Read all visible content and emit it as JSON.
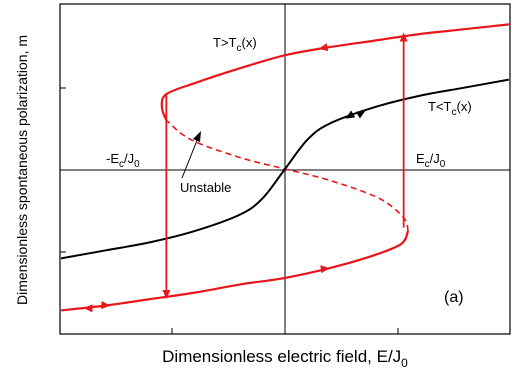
{
  "chart_data": {
    "type": "line",
    "panel_label": "(a)",
    "xlabel_main": "Dimensionless electric field, E/J",
    "xlabel_sub": "0",
    "ylabel": "Dimensionless spontaneous polarization, m",
    "grid": false,
    "axes_crosshair_at_origin": true,
    "series": [
      {
        "name": "T>Tc(x)",
        "color": "#e8171b",
        "style": "solid",
        "points": [
          [
            -1.0,
            -0.87
          ],
          [
            -0.8,
            -0.84
          ],
          [
            -0.6,
            -0.8
          ],
          [
            -0.4,
            -0.76
          ],
          [
            -0.2,
            -0.71
          ],
          [
            0,
            -0.67
          ],
          [
            0.2,
            -0.61
          ],
          [
            0.4,
            -0.53
          ],
          [
            0.52,
            -0.46
          ],
          [
            0.55,
            -0.38
          ],
          [
            0.53,
            -0.3
          ],
          [
            0.42,
            -0.18
          ],
          [
            0.2,
            -0.07
          ],
          [
            0,
            0
          ],
          [
            -0.2,
            0.07
          ],
          [
            -0.42,
            0.18
          ],
          [
            -0.53,
            0.3
          ],
          [
            -0.55,
            0.38
          ],
          [
            -0.53,
            0.46
          ],
          [
            -0.4,
            0.53
          ],
          [
            -0.2,
            0.62
          ],
          [
            0,
            0.7
          ],
          [
            0.2,
            0.75
          ],
          [
            0.4,
            0.79
          ],
          [
            0.6,
            0.83
          ],
          [
            0.8,
            0.86
          ],
          [
            1.0,
            0.89
          ]
        ]
      },
      {
        "name": "T<Tc(x)",
        "color": "#000000",
        "style": "solid",
        "points": [
          [
            -1.0,
            -0.55
          ],
          [
            -0.8,
            -0.5
          ],
          [
            -0.6,
            -0.45
          ],
          [
            -0.4,
            -0.38
          ],
          [
            -0.2,
            -0.28
          ],
          [
            -0.1,
            -0.18
          ],
          [
            0,
            0
          ],
          [
            0.1,
            0.18
          ],
          [
            0.2,
            0.28
          ],
          [
            0.4,
            0.38
          ],
          [
            0.6,
            0.45
          ],
          [
            0.8,
            0.5
          ],
          [
            1.0,
            0.55
          ]
        ]
      }
    ],
    "switching": {
      "up_at_x": 0.53,
      "down_at_x": -0.53
    },
    "annotations": [
      {
        "main": "T>T",
        "sub": "c",
        "tail": "(x)"
      },
      {
        "main": "T<T",
        "sub": "c",
        "tail": "(x)"
      },
      {
        "main": "-E",
        "sub1": "c",
        "mid": "/J",
        "sub2": "0"
      },
      {
        "main": "E",
        "sub1": "c",
        "mid": "/J",
        "sub2": "0"
      },
      {
        "main": "Unstable"
      }
    ]
  }
}
